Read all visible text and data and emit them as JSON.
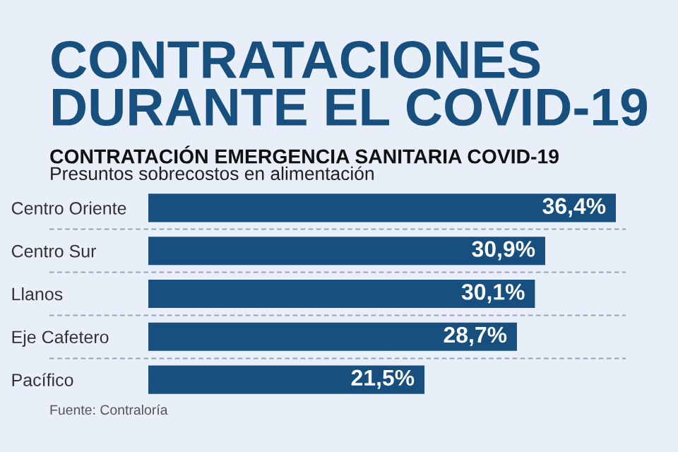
{
  "chart_data": {
    "type": "bar",
    "orientation": "horizontal",
    "title": "CONTRATACIONES\nDURANTE EL COVID-19",
    "subtitle": "CONTRATACIÓN EMERGENCIA SANITARIA COVID-19",
    "annotations": [
      "Presuntos sobrecostos en alimentación",
      "Fuente: Contraloría"
    ],
    "categories": [
      "Centro Oriente",
      "Centro Sur",
      "Llanos",
      "Eje Cafetero",
      "Pacífico"
    ],
    "values": [
      36.4,
      30.9,
      30.1,
      28.7,
      21.5
    ],
    "value_labels": [
      "36,4%",
      "30,9%",
      "30,1%",
      "28,7%",
      "21,5%"
    ],
    "color": "#174f7f",
    "grid": false,
    "legend": false,
    "tick_labels": "y"
  }
}
